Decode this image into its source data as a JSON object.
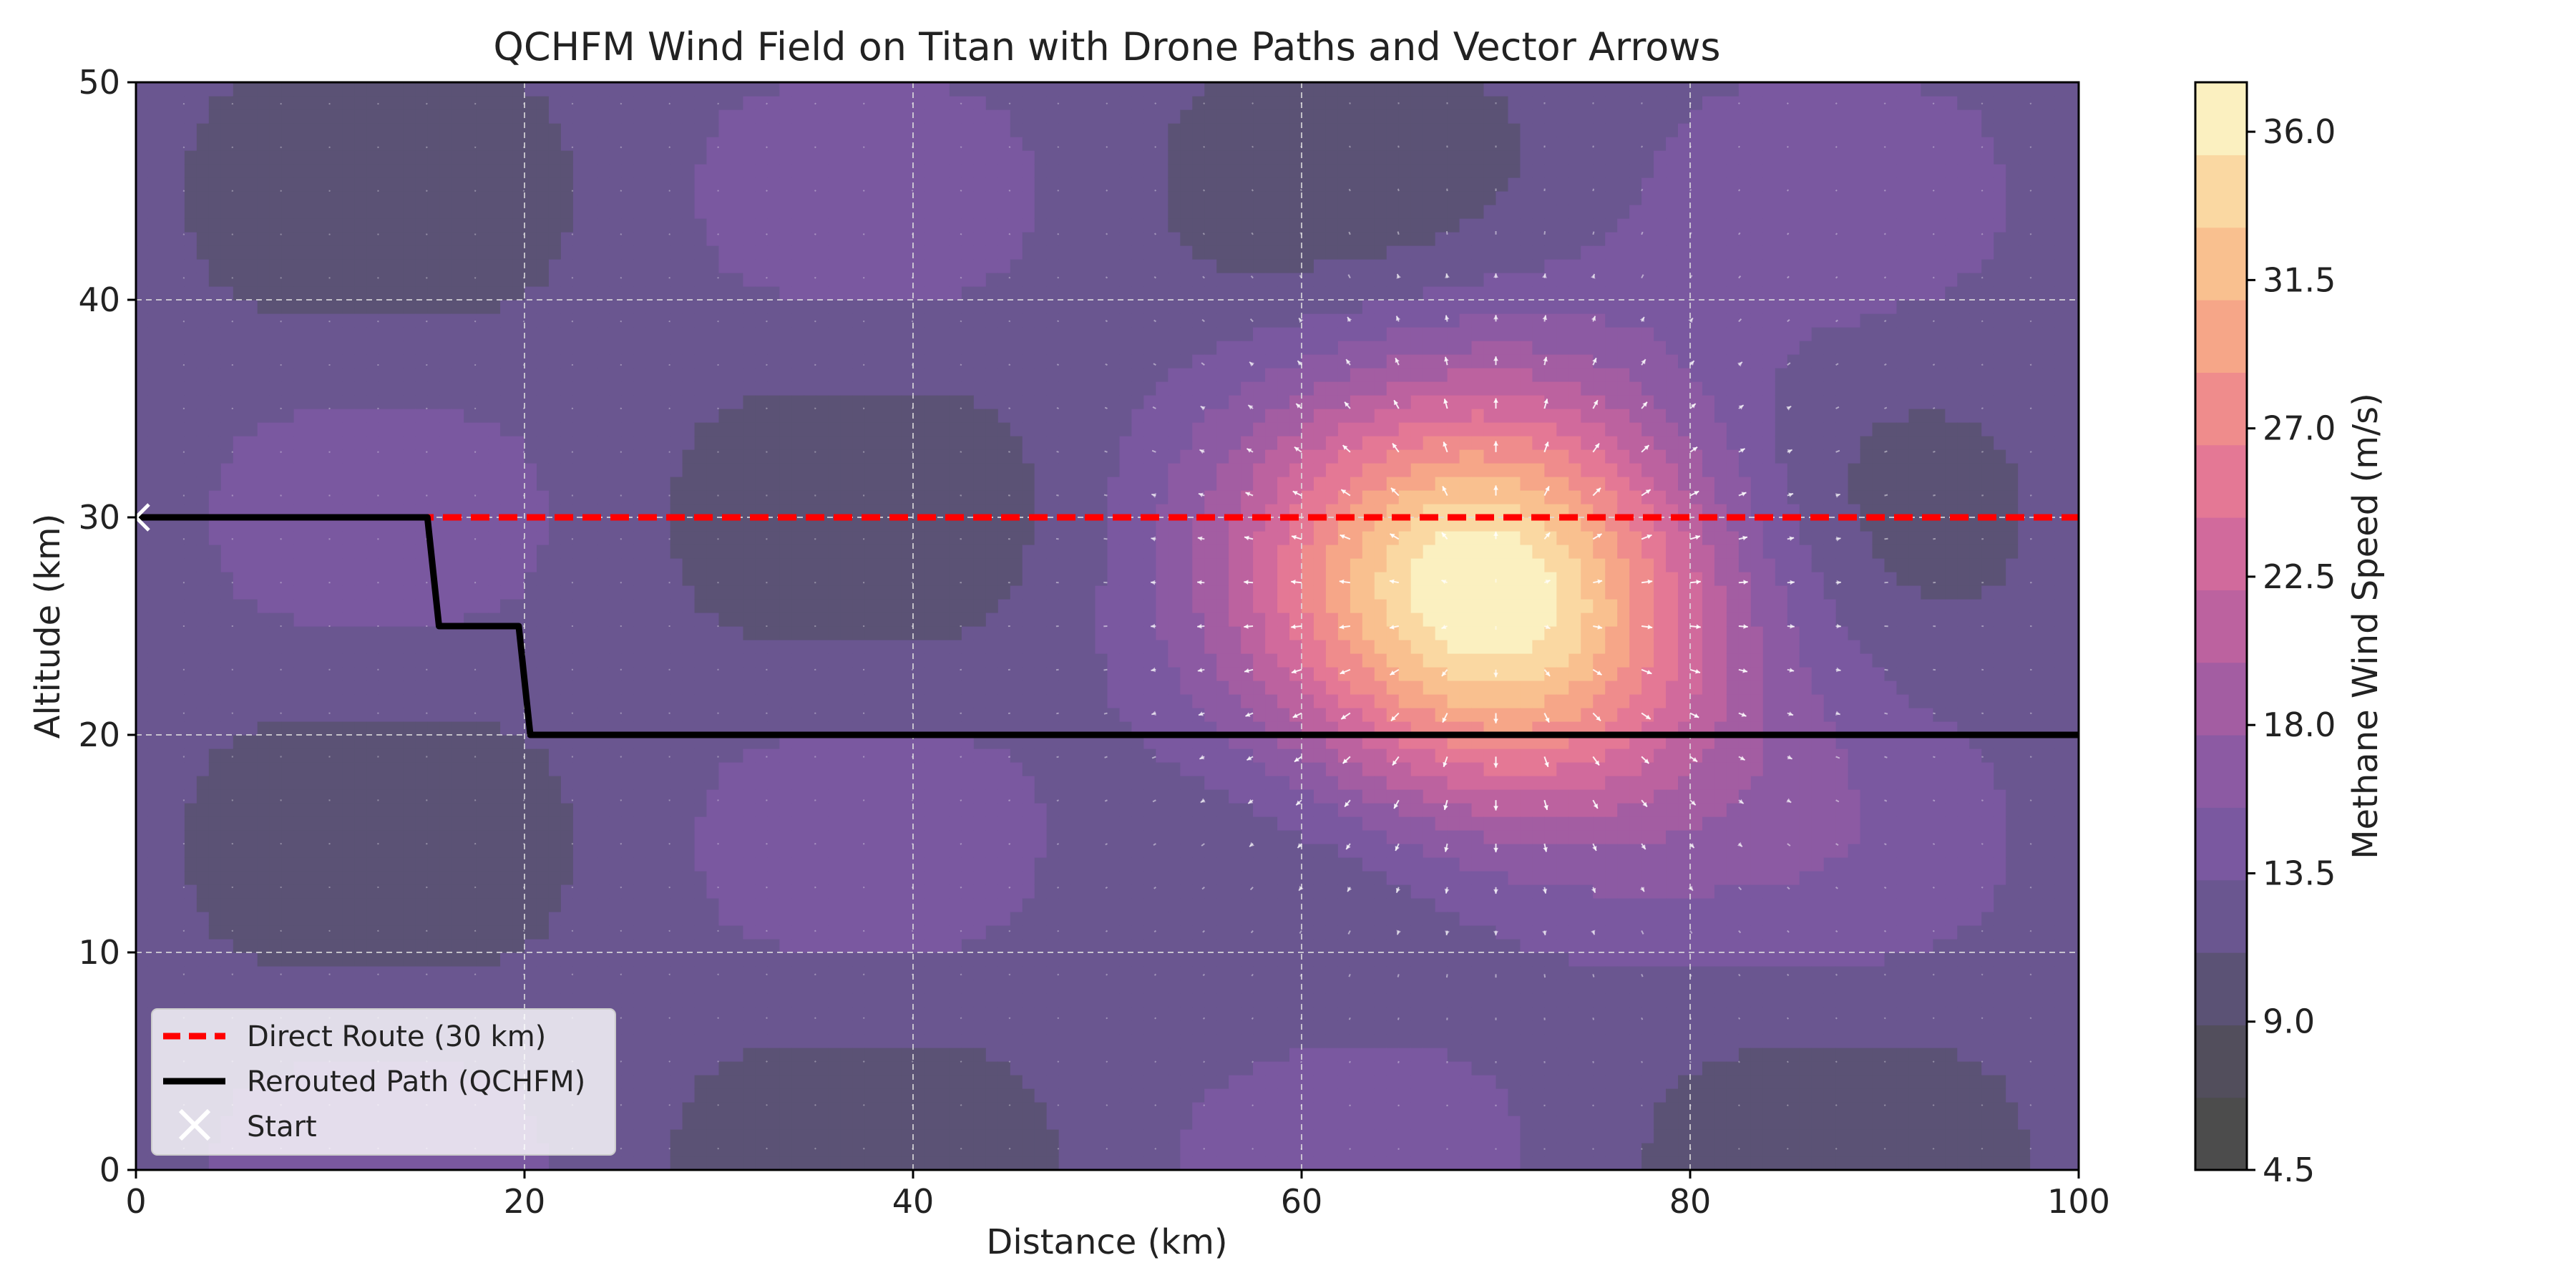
{
  "chart_data": {
    "type": "heatmap",
    "title": "QCHFM Wind Field on Titan with Drone Paths and Vector Arrows",
    "xlabel": "Distance (km)",
    "ylabel": "Altitude (km)",
    "xlim": [
      0,
      100
    ],
    "ylim": [
      0,
      50
    ],
    "xticks": [
      0,
      20,
      40,
      60,
      80,
      100
    ],
    "yticks": [
      0,
      10,
      20,
      30,
      40,
      50
    ],
    "grid": true,
    "grid_style": "dashed",
    "colormap": "magma (alpha 0.7)",
    "colorbar": {
      "label": "Methane Wind Speed (m/s)",
      "range": [
        4.5,
        37.5
      ],
      "ticks": [
        4.5,
        9.0,
        13.5,
        18.0,
        22.5,
        27.0,
        31.5,
        36.0
      ],
      "tick_labels": [
        "4.5",
        "9.0",
        "13.5",
        "18.0",
        "22.5",
        "27.0",
        "31.5",
        "36.0"
      ],
      "colors": [
        "#4c4c4c",
        "#524e5c",
        "#5b5275",
        "#6a5690",
        "#7a58a0",
        "#8c5aa3",
        "#a35da2",
        "#bc629f",
        "#d16a9c",
        "#e47895",
        "#ef8c8c",
        "#f6a688",
        "#f9c08f",
        "#fad8a2",
        "#fbf0c0"
      ]
    },
    "wind_field": {
      "background_speed": 12.0,
      "base_wave_amplitude": 2.8,
      "base_wave_periods": {
        "x_km": 50,
        "y_km": 30
      },
      "gust": {
        "x": 70,
        "y": 26,
        "peak_speed": 36.5,
        "sigma_x": 8.5,
        "sigma_y": 7.0
      },
      "vector_arrows": "radially outward from gust core, white"
    },
    "legend": {
      "position": "lower-left",
      "entries": [
        {
          "label": "Direct Route (30 km)",
          "color": "#ff0000",
          "style": "dashed"
        },
        {
          "label": "Rerouted Path (QCHFM)",
          "color": "#000000",
          "style": "solid"
        },
        {
          "label": "Start",
          "color": "#ffffff",
          "style": "marker-x"
        }
      ]
    },
    "series": [
      {
        "name": "Direct Route (30 km)",
        "color": "#ff0000",
        "style": "dashed",
        "x": [
          0,
          100
        ],
        "y": [
          30,
          30
        ]
      },
      {
        "name": "Rerouted Path (QCHFM)",
        "color": "#000000",
        "style": "solid",
        "x": [
          0,
          15,
          15.6,
          19.7,
          20.3,
          100
        ],
        "y": [
          30,
          30,
          25,
          25,
          20,
          20
        ]
      },
      {
        "name": "Start",
        "color": "#ffffff",
        "style": "marker-x",
        "x": [
          0
        ],
        "y": [
          30
        ]
      }
    ]
  }
}
